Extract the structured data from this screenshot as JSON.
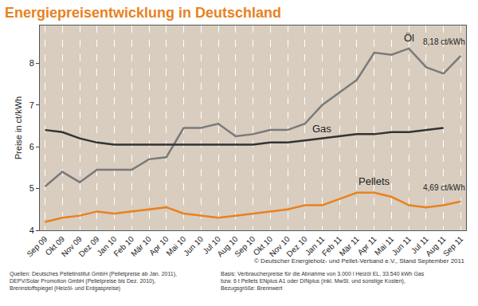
{
  "chart_data": {
    "type": "line",
    "title": "Energiepreisentwicklung in Deutschland",
    "y_label": "Preise in ct/kWh",
    "categories": [
      "Sep 09",
      "Okt 09",
      "Nov 09",
      "Dez 09",
      "Jan 10",
      "Feb 10",
      "Mär 10",
      "Apr 10",
      "Mai 10",
      "Jun 10",
      "Jul 10",
      "Aug 10",
      "Sep 10",
      "Okt 10",
      "Nov 10",
      "Dez 10",
      "Jan 11",
      "Feb 11",
      "Mär 11",
      "Apr 11",
      "Mai 11",
      "Jun 11",
      "Jul 11",
      "Aug 11",
      "Sep 11"
    ],
    "series": [
      {
        "name": "Öl",
        "color": "#7a7a7a",
        "values": [
          5.05,
          5.4,
          5.15,
          5.45,
          5.45,
          5.45,
          5.7,
          5.75,
          6.45,
          6.45,
          6.55,
          6.25,
          6.3,
          6.4,
          6.4,
          6.55,
          7.0,
          7.3,
          7.6,
          8.25,
          8.2,
          8.35,
          7.9,
          7.75,
          8.18
        ],
        "value_labels": [
          null,
          null,
          null,
          null,
          null,
          null,
          null,
          null,
          null,
          null,
          null,
          null,
          null,
          null,
          null,
          null,
          null,
          null,
          null,
          null,
          null,
          null,
          null,
          null,
          "8,18 ct/kWh"
        ]
      },
      {
        "name": "Gas",
        "color": "#333333",
        "values": [
          6.4,
          6.35,
          6.2,
          6.1,
          6.05,
          6.05,
          6.05,
          6.05,
          6.05,
          6.05,
          6.05,
          6.05,
          6.05,
          6.1,
          6.1,
          6.15,
          6.2,
          6.25,
          6.3,
          6.3,
          6.35,
          6.35,
          6.4,
          6.45,
          null
        ]
      },
      {
        "name": "Pellets",
        "color": "#e8821e",
        "values": [
          4.2,
          4.3,
          4.35,
          4.45,
          4.4,
          4.45,
          4.5,
          4.55,
          4.4,
          4.35,
          4.3,
          4.35,
          4.4,
          4.45,
          4.5,
          4.6,
          4.6,
          4.75,
          4.9,
          4.9,
          4.8,
          4.6,
          4.55,
          4.6,
          4.69
        ],
        "value_labels": [
          null,
          null,
          null,
          null,
          null,
          null,
          null,
          null,
          null,
          null,
          null,
          null,
          null,
          null,
          null,
          null,
          null,
          null,
          null,
          null,
          null,
          null,
          null,
          null,
          "4,69 ct/kWh"
        ]
      }
    ],
    "ylim": [
      4,
      8.9
    ],
    "yticks": [
      4,
      5,
      6,
      7,
      8
    ],
    "grid": true,
    "copyright": "© Deutscher Energieholz- und Pellet-Verband e.V., Stand September 2011",
    "sources": [
      "Quellen: Deutsches Pelletinstitut GmbH (Pelletpreise ab Jan. 2011),",
      "DEPV/Solar Promotion GmbH (Pelletpreise bis Dez. 2010),",
      "Brennstoffspiegel (Heizöl- und Erdgaspreise)"
    ],
    "basis": [
      "Basis: Verbraucherpreise für die Abnahme von 3.000 l Heizöl EL, 33.540 kWh Gas",
      "bzw. 6 t Pellets ENplus A1 oder DINplus (inkl. MwSt. und sonstige Kosten),",
      "Bezugsgröße: Brennwert"
    ]
  }
}
